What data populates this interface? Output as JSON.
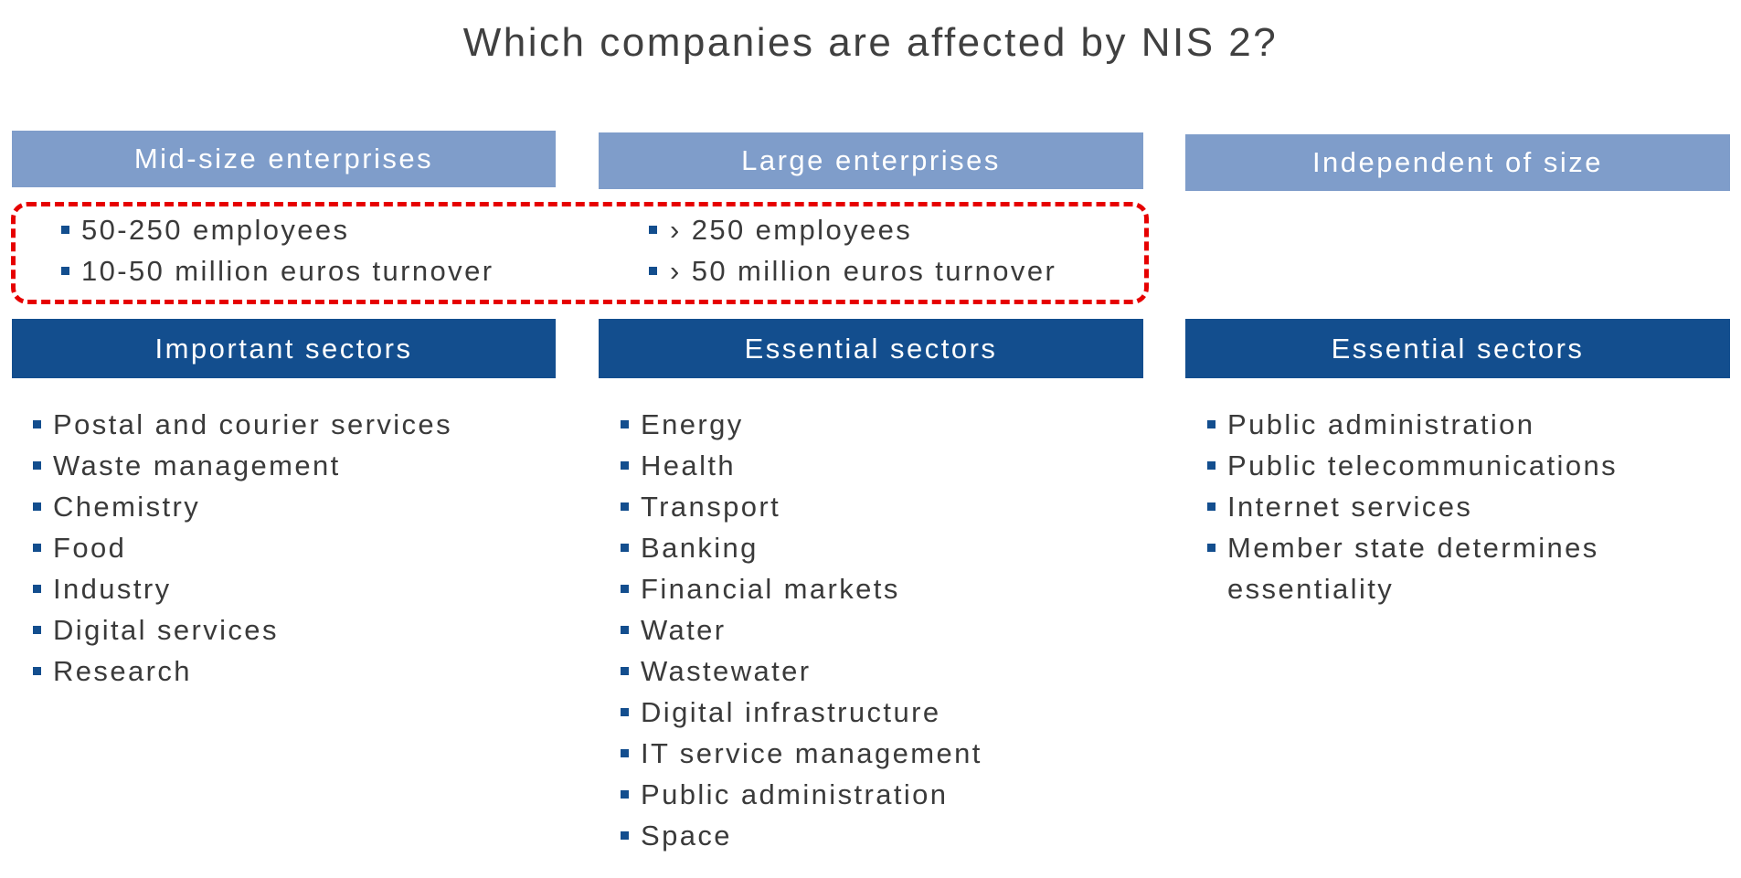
{
  "title": "Which companies are affected by NIS 2?",
  "columns": [
    {
      "size_header": "Mid-size enterprises",
      "criteria": [
        "50-250 employees",
        "10-50 million euros turnover"
      ],
      "sector_header": "Important sectors",
      "sectors": [
        "Postal and courier services",
        "Waste management",
        "Chemistry",
        "Food",
        "Industry",
        "Digital services",
        "Research"
      ]
    },
    {
      "size_header": "Large enterprises",
      "criteria": [
        "› 250 employees",
        "› 50 million euros turnover"
      ],
      "sector_header": "Essential sectors",
      "sectors": [
        "Energy",
        "Health",
        "Transport",
        "Banking",
        "Financial markets",
        "Water",
        "Wastewater",
        "Digital infrastructure",
        "IT service management",
        "Public administration",
        "Space"
      ]
    },
    {
      "size_header": "Independent of size",
      "criteria": [],
      "sector_header": "Essential sectors",
      "sectors": [
        "Public administration",
        "Public telecommunications",
        "Internet services",
        "Member state determines",
        "essentiality"
      ]
    }
  ],
  "colors": {
    "light_header": "#7f9dca",
    "dark_header": "#134e8e",
    "highlight": "#e60000"
  }
}
